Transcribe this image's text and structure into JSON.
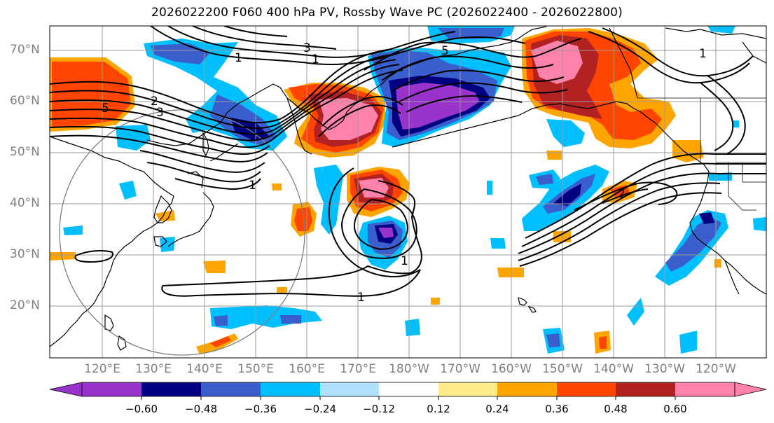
{
  "title": "2026022200 F060 400 hPa PV, Rossby Wave PC (2026022400 - 2026022800)",
  "lat_labels": [
    "70°N",
    "60°N",
    "50°N",
    "40°N",
    "30°N",
    "20°N"
  ],
  "lon_labels": [
    "120°E",
    "130°E",
    "140°E",
    "150°E",
    "160°E",
    "170°E",
    "180°W",
    "170°W",
    "160°W",
    "150°W",
    "140°W",
    "130°W",
    "120°W"
  ],
  "contour_labels": [
    "1",
    "1",
    "1",
    "1",
    "1",
    "1",
    "2",
    "2",
    "3",
    "3",
    "5",
    "5"
  ],
  "colorbar": {
    "ticks": [
      "−0.60",
      "−0.48",
      "−0.36",
      "−0.24",
      "−0.12",
      "0.12",
      "0.24",
      "0.36",
      "0.48",
      "0.60"
    ],
    "colors": [
      "#9933CC",
      "#000080",
      "#3A5FCD",
      "#00BFFF",
      "#B0E2FF",
      "#FFFFFF",
      "#FFEC8B",
      "#FFA500",
      "#FF4500",
      "#B22222",
      "#FF82AB"
    ]
  },
  "colors": {
    "grid": "#9a9a9a",
    "coast": "#000000",
    "label_gray": "#808080"
  }
}
